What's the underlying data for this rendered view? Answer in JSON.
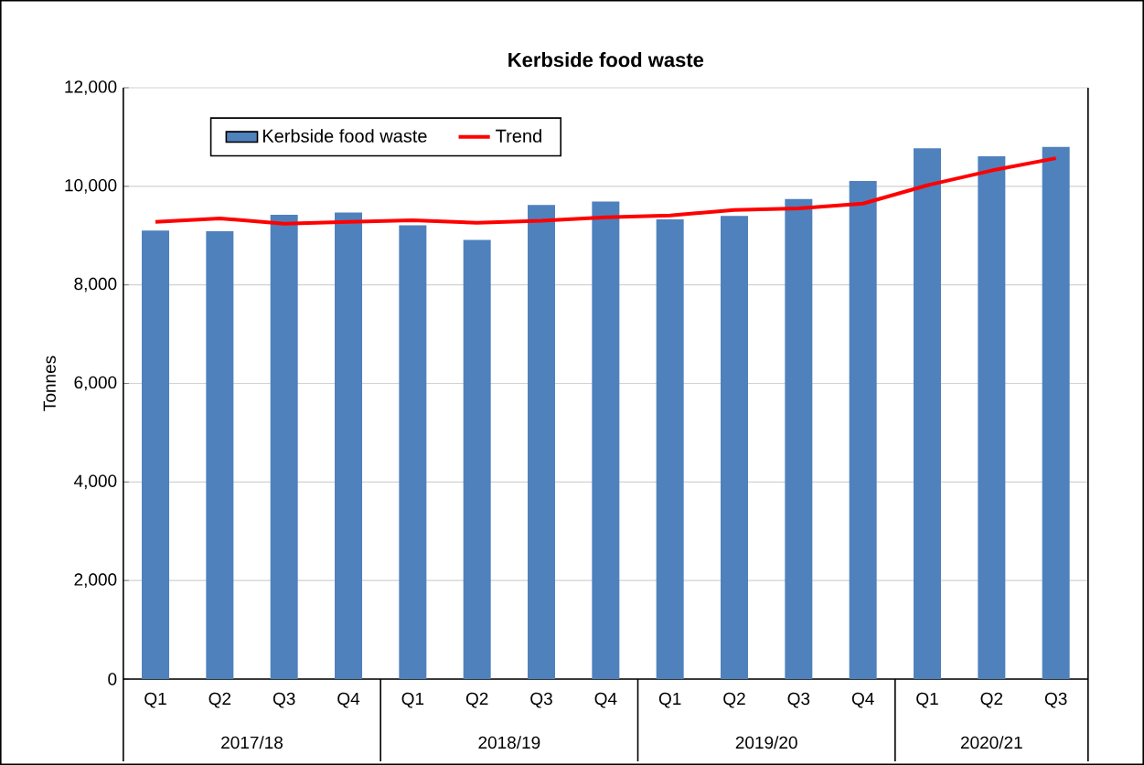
{
  "chart_data": {
    "type": "bar",
    "title": "Kerbside food waste",
    "ylabel": "Tonnes",
    "categories": [
      "Q1",
      "Q2",
      "Q3",
      "Q4",
      "Q1",
      "Q2",
      "Q3",
      "Q4",
      "Q1",
      "Q2",
      "Q3",
      "Q4",
      "Q1",
      "Q2",
      "Q3"
    ],
    "series": [
      {
        "name": "Kerbside food waste",
        "color": "#4f81bd",
        "values": [
          9100,
          9090,
          9420,
          9470,
          9210,
          8910,
          9620,
          9690,
          9330,
          9400,
          9740,
          10110,
          10770,
          10610,
          10800
        ]
      },
      {
        "name": "Trend",
        "type": "line",
        "color": "#ff0000",
        "values": [
          9280,
          9350,
          9240,
          9280,
          9310,
          9260,
          9300,
          9370,
          9410,
          9520,
          9550,
          9650,
          10020,
          10320,
          10570
        ]
      }
    ],
    "ylim": [
      0,
      12000
    ],
    "yticks": [
      {
        "value": 0,
        "label": "0"
      },
      {
        "value": 2000,
        "label": "2,000"
      },
      {
        "value": 4000,
        "label": "4,000"
      },
      {
        "value": 6000,
        "label": "6,000"
      },
      {
        "value": 8000,
        "label": "8,000"
      },
      {
        "value": 10000,
        "label": "10,000"
      },
      {
        "value": 12000,
        "label": "12,000"
      }
    ],
    "grid": "y",
    "legend": "top left",
    "marker": "none",
    "annotations": [
      "2017/18",
      "2018/19",
      "2019/20",
      "2020/21"
    ]
  }
}
